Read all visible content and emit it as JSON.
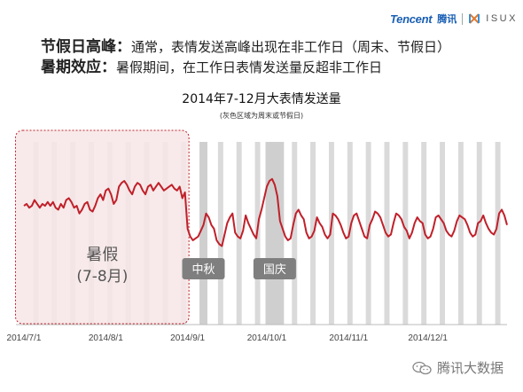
{
  "header": {
    "line1_term": "节假日高峰：",
    "line1_text": "通常，表情发送高峰出现在非工作日（周末、节假日）",
    "line2_term": "暑期效应：",
    "line2_text": "暑假期间，在工作日表情发送量反超非工作日"
  },
  "brand": {
    "tencent": "Tencent",
    "tencent_cn": "腾讯",
    "isux": "ISUX"
  },
  "footer": {
    "account": "腾讯大数据"
  },
  "colors": {
    "line": "#c0202a",
    "weekend_band": "#dadada",
    "holiday_band": "#cfcfcf",
    "summer_fill": "#f7e6e6",
    "summer_border": "#c0202a",
    "label_box": "#7f7f7f"
  },
  "chart_data": {
    "type": "line",
    "title": "2014年7-12月大表情发送量",
    "subtitle": "(灰色区域为周末或节假日)",
    "x_start": "2014-07-01",
    "x_end": "2014-12-31",
    "xticks": [
      {
        "date": "2014-07-01",
        "label": "2014/7/1"
      },
      {
        "date": "2014-08-01",
        "label": "2014/8/1"
      },
      {
        "date": "2014-09-01",
        "label": "2014/9/1"
      },
      {
        "date": "2014-10-01",
        "label": "2014/10/1"
      },
      {
        "date": "2014-11-01",
        "label": "2014/11/1"
      },
      {
        "date": "2014-12-01",
        "label": "2014/12/1"
      }
    ],
    "ylim": [
      0,
      100
    ],
    "grid": false,
    "legend": "none",
    "weekend_bands": [
      [
        "2014-07-05",
        "2014-07-06"
      ],
      [
        "2014-07-12",
        "2014-07-13"
      ],
      [
        "2014-07-19",
        "2014-07-20"
      ],
      [
        "2014-07-26",
        "2014-07-27"
      ],
      [
        "2014-08-02",
        "2014-08-03"
      ],
      [
        "2014-08-09",
        "2014-08-10"
      ],
      [
        "2014-08-16",
        "2014-08-17"
      ],
      [
        "2014-08-23",
        "2014-08-24"
      ],
      [
        "2014-08-30",
        "2014-08-31"
      ],
      [
        "2014-09-13",
        "2014-09-14"
      ],
      [
        "2014-09-20",
        "2014-09-21"
      ],
      [
        "2014-09-27",
        "2014-09-28"
      ],
      [
        "2014-10-11",
        "2014-10-12"
      ],
      [
        "2014-10-18",
        "2014-10-19"
      ],
      [
        "2014-10-25",
        "2014-10-26"
      ],
      [
        "2014-11-01",
        "2014-11-02"
      ],
      [
        "2014-11-08",
        "2014-11-09"
      ],
      [
        "2014-11-15",
        "2014-11-16"
      ],
      [
        "2014-11-22",
        "2014-11-23"
      ],
      [
        "2014-11-29",
        "2014-11-30"
      ],
      [
        "2014-12-06",
        "2014-12-07"
      ],
      [
        "2014-12-13",
        "2014-12-14"
      ],
      [
        "2014-12-20",
        "2014-12-21"
      ],
      [
        "2014-12-27",
        "2014-12-28"
      ]
    ],
    "holiday_bands": [
      {
        "label": "中秋",
        "start": "2014-09-06",
        "end": "2014-09-08"
      },
      {
        "label": "国庆",
        "start": "2014-10-01",
        "end": "2014-10-07"
      }
    ],
    "highlight": {
      "label_line1": "暑假",
      "label_line2": "(7-8月)",
      "start": "2014-07-01",
      "end": "2014-08-31"
    },
    "series": [
      {
        "values": [
          62,
          63,
          61,
          62,
          65,
          63,
          61,
          63,
          62,
          64,
          62,
          64,
          61,
          60,
          63,
          61,
          65,
          66,
          64,
          61,
          62,
          58,
          60,
          63,
          64,
          60,
          59,
          62,
          66,
          68,
          65,
          70,
          71,
          68,
          63,
          65,
          72,
          74,
          75,
          73,
          70,
          68,
          72,
          74,
          73,
          70,
          68,
          72,
          73,
          70,
          72,
          74,
          72,
          70,
          71,
          72,
          73,
          71,
          70,
          72,
          66,
          69,
          50,
          46,
          44,
          45,
          46,
          49,
          52,
          58,
          56,
          52,
          50,
          44,
          42,
          41,
          47,
          53,
          56,
          58,
          48,
          46,
          45,
          49,
          57,
          53,
          50,
          47,
          45,
          55,
          60,
          66,
          72,
          75,
          76,
          73,
          67,
          54,
          50,
          46,
          44,
          45,
          52,
          58,
          60,
          57,
          55,
          48,
          45,
          46,
          49,
          56,
          53,
          51,
          47,
          45,
          47,
          58,
          57,
          55,
          52,
          48,
          45,
          46,
          53,
          57,
          58,
          54,
          50,
          46,
          45,
          52,
          55,
          59,
          58,
          56,
          52,
          48,
          46,
          47,
          53,
          58,
          57,
          55,
          51,
          49,
          45,
          48,
          53,
          56,
          54,
          53,
          47,
          45,
          46,
          50,
          56,
          57,
          55,
          53,
          49,
          47,
          46,
          49,
          54,
          57,
          56,
          55,
          52,
          48,
          46,
          47,
          53,
          54,
          57,
          53,
          50,
          48,
          47,
          50,
          58,
          60,
          57,
          52
        ]
      }
    ]
  }
}
